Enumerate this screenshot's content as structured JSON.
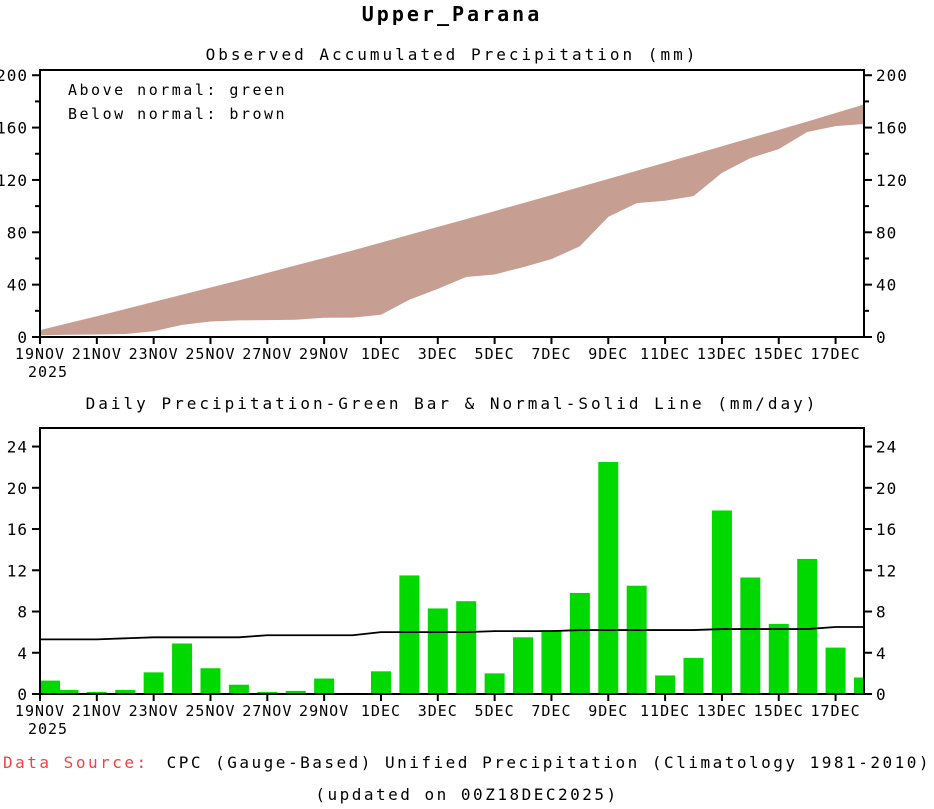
{
  "page": {
    "title": "Upper_Parana",
    "footer": {
      "source_label": "Data Source:",
      "source_text": "CPC (Gauge-Based) Unified Precipitation (Climatology 1981-2010)",
      "updated_text": "(updated on 00Z18DEC2025)"
    },
    "colors": {
      "above_normal_green": "#00d900",
      "below_normal_brown": "#c79e92",
      "normal_line_black": "#000000",
      "source_label_red": "#ee4444",
      "axis_black": "#000000"
    }
  },
  "chart_data": [
    {
      "id": "accumulated-precip",
      "type": "area",
      "title": "Observed Accumulated Precipitation (mm)",
      "legend": {
        "above": "Above normal: green",
        "below": "Below normal: brown"
      },
      "ylim": [
        0,
        200
      ],
      "yticks": [
        0,
        40,
        80,
        120,
        160,
        200
      ],
      "ytick_minor_step": 20,
      "x": [
        "19NOV",
        "20NOV",
        "21NOV",
        "22NOV",
        "23NOV",
        "24NOV",
        "25NOV",
        "26NOV",
        "27NOV",
        "28NOV",
        "29NOV",
        "30NOV",
        "1DEC",
        "2DEC",
        "3DEC",
        "4DEC",
        "5DEC",
        "6DEC",
        "7DEC",
        "8DEC",
        "9DEC",
        "10DEC",
        "11DEC",
        "12DEC",
        "13DEC",
        "14DEC",
        "15DEC",
        "16DEC",
        "17DEC",
        "18DEC"
      ],
      "x_year": "2025",
      "xticklabels": [
        "19NOV",
        "21NOV",
        "23NOV",
        "25NOV",
        "27NOV",
        "29NOV",
        "1DEC",
        "3DEC",
        "5DEC",
        "7DEC",
        "9DEC",
        "11DEC",
        "13DEC",
        "15DEC",
        "17DEC"
      ],
      "series": [
        {
          "name": "observed_accumulated_mm",
          "values": [
            1.3,
            1.7,
            1.9,
            2.3,
            4.4,
            9.3,
            11.8,
            12.7,
            12.9,
            13.2,
            14.7,
            14.8,
            17.0,
            28.5,
            36.8,
            45.8,
            47.8,
            53.3,
            59.5,
            69.3,
            91.8,
            102.3,
            104.1,
            107.6,
            125.4,
            136.7,
            143.5,
            156.6,
            161.1,
            162.7
          ]
        },
        {
          "name": "normal_accumulated_mm",
          "values": [
            5.3,
            10.6,
            15.9,
            21.3,
            26.8,
            32.3,
            37.8,
            43.3,
            49.0,
            54.7,
            60.4,
            66.1,
            72.1,
            78.1,
            84.1,
            90.1,
            96.2,
            102.3,
            108.4,
            114.6,
            120.8,
            127.0,
            133.2,
            139.4,
            145.7,
            152.0,
            158.3,
            164.6,
            171.1,
            177.6
          ]
        }
      ],
      "band_meaning": "area between observed and normal filled brown (observed below normal)"
    },
    {
      "id": "daily-precip",
      "type": "bar",
      "title": "Daily Precipitation-Green Bar & Normal-Solid Line (mm/day)",
      "ylim": [
        0,
        24
      ],
      "yticks": [
        0,
        4,
        8,
        12,
        16,
        20,
        24
      ],
      "categories": [
        "19NOV",
        "20NOV",
        "21NOV",
        "22NOV",
        "23NOV",
        "24NOV",
        "25NOV",
        "26NOV",
        "27NOV",
        "28NOV",
        "29NOV",
        "30NOV",
        "1DEC",
        "2DEC",
        "3DEC",
        "4DEC",
        "5DEC",
        "6DEC",
        "7DEC",
        "8DEC",
        "9DEC",
        "10DEC",
        "11DEC",
        "12DEC",
        "13DEC",
        "14DEC",
        "15DEC",
        "16DEC",
        "17DEC",
        "18DEC"
      ],
      "x_year": "2025",
      "xticklabels": [
        "19NOV",
        "21NOV",
        "23NOV",
        "25NOV",
        "27NOV",
        "29NOV",
        "1DEC",
        "3DEC",
        "5DEC",
        "7DEC",
        "9DEC",
        "11DEC",
        "13DEC",
        "15DEC",
        "17DEC"
      ],
      "series": [
        {
          "name": "observed_daily_mm",
          "style": "bar",
          "values": [
            1.3,
            0.4,
            0.2,
            0.4,
            2.1,
            4.9,
            2.5,
            0.9,
            0.2,
            0.3,
            1.5,
            0.1,
            2.2,
            11.5,
            8.3,
            9.0,
            2.0,
            5.5,
            6.2,
            9.8,
            22.5,
            10.5,
            1.8,
            3.5,
            17.8,
            11.3,
            6.8,
            13.1,
            4.5,
            1.6
          ]
        },
        {
          "name": "normal_daily_mm",
          "style": "line",
          "values": [
            5.3,
            5.3,
            5.3,
            5.4,
            5.5,
            5.5,
            5.5,
            5.5,
            5.7,
            5.7,
            5.7,
            5.7,
            6.0,
            6.0,
            6.0,
            6.0,
            6.1,
            6.1,
            6.1,
            6.2,
            6.2,
            6.2,
            6.2,
            6.2,
            6.3,
            6.3,
            6.3,
            6.3,
            6.5,
            6.5
          ]
        }
      ]
    }
  ]
}
